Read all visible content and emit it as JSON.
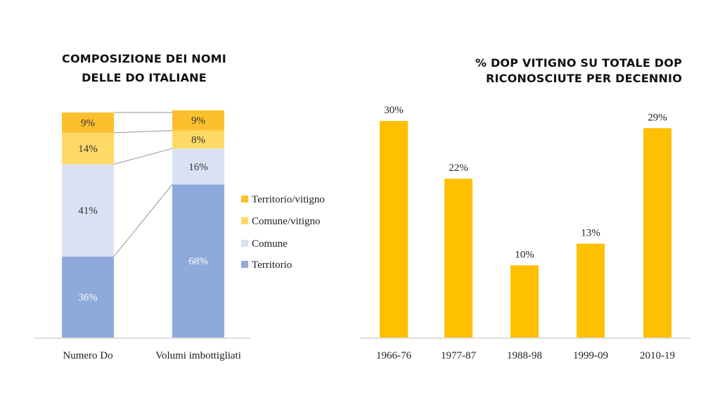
{
  "colors": {
    "territorio_vitigno": "#FBC02D",
    "comune_vitigno": "#FFD966",
    "comune": "#D9E2F3",
    "territorio": "#8EA9DB",
    "bar": "#FFC000",
    "axis": "#BFBFBF",
    "connector": "#A6A6A6"
  },
  "chart_data": [
    {
      "type": "bar",
      "stacked": true,
      "percent": true,
      "title": "COMPOSIZIONE DEI NOMI DELLE DO ITALIANE",
      "title_lines": [
        "COMPOSIZIONE DEI NOMI",
        "DELLE DO ITALIANE"
      ],
      "categories": [
        "Numero Do",
        "Volumi imbottigliati"
      ],
      "series": [
        {
          "name": "Territorio",
          "values": [
            36,
            68
          ],
          "labels": [
            "36%",
            "68%"
          ]
        },
        {
          "name": "Comune",
          "values": [
            41,
            16
          ],
          "labels": [
            "41%",
            "16%"
          ]
        },
        {
          "name": "Comune/vitigno",
          "values": [
            14,
            8
          ],
          "labels": [
            "14%",
            "8%"
          ]
        },
        {
          "name": "Territorio/vitigno",
          "values": [
            9,
            9
          ],
          "labels": [
            "9%",
            "9%"
          ]
        }
      ],
      "legend": [
        "Territorio/vitigno",
        "Comune/vitigno",
        "Comune",
        "Territorio"
      ],
      "legend_position": "right",
      "ylim": [
        0,
        100
      ],
      "grid": false
    },
    {
      "type": "bar",
      "title": "% DOP VITIGNO SU TOTALE DOP RICONOSCIUTE PER DECENNIO",
      "title_lines": [
        "% DOP VITIGNO SU TOTALE DOP",
        "RICONOSCIUTE PER DECENNIO"
      ],
      "categories": [
        "1966-76",
        "1977-87",
        "1988-98",
        "1999-09",
        "2010-19"
      ],
      "values": [
        30,
        22,
        10,
        13,
        29
      ],
      "labels": [
        "30%",
        "22%",
        "10%",
        "13%",
        "29%"
      ],
      "ylim": [
        0,
        32
      ],
      "grid": false
    }
  ]
}
